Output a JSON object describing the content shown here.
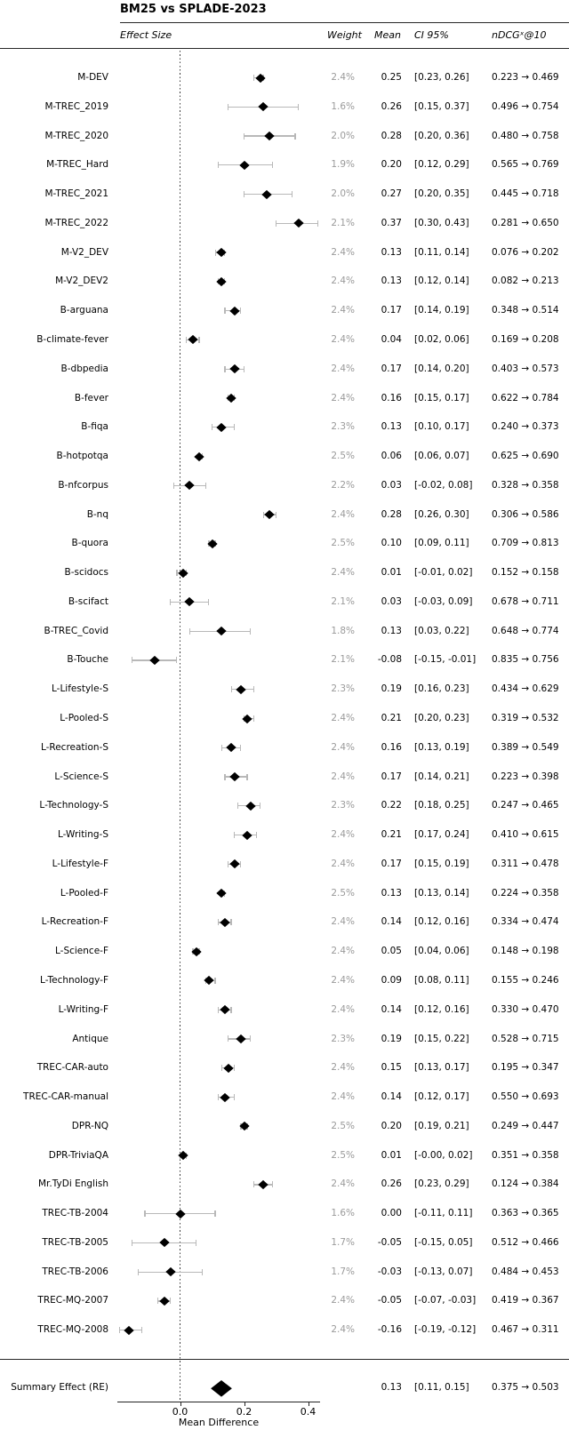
{
  "title": "BM25 vs SPLADE-2023",
  "header": {
    "effect_size": "Effect Size",
    "weight": "Weight",
    "mean": "Mean",
    "ci": "CI 95%",
    "ndcg": "nDCGˣ@10"
  },
  "axis": {
    "xlabel": "Mean Difference",
    "tick_labels": [
      "0.0",
      "0.2",
      "0.4"
    ]
  },
  "colors": {
    "text": "#000000",
    "weight_text": "#9a9a9a",
    "errorbar": "#b8b8b8",
    "diamond": "#000000",
    "rule": "#262626"
  },
  "chart_data": {
    "type": "forest",
    "title": "BM25 vs SPLADE-2023",
    "xlabel": "Mean Difference",
    "xlim": [
      -0.2,
      0.44
    ],
    "x_ticks": [
      0.0,
      0.2,
      0.4
    ],
    "zero_reference_line": 0.0,
    "grid": false,
    "rows": [
      {
        "label": "M-DEV",
        "weight": "2.4%",
        "mean": "0.25",
        "lo": 0.23,
        "hi": 0.26,
        "ci": "[0.23, 0.26]",
        "ndcg": "0.223 → 0.469"
      },
      {
        "label": "M-TREC_2019",
        "weight": "1.6%",
        "mean": "0.26",
        "lo": 0.15,
        "hi": 0.37,
        "ci": "[0.15, 0.37]",
        "ndcg": "0.496 → 0.754"
      },
      {
        "label": "M-TREC_2020",
        "weight": "2.0%",
        "mean": "0.28",
        "lo": 0.2,
        "hi": 0.36,
        "ci": "[0.20, 0.36]",
        "ndcg": "0.480 → 0.758"
      },
      {
        "label": "M-TREC_Hard",
        "weight": "1.9%",
        "mean": "0.20",
        "lo": 0.12,
        "hi": 0.29,
        "ci": "[0.12, 0.29]",
        "ndcg": "0.565 → 0.769"
      },
      {
        "label": "M-TREC_2021",
        "weight": "2.0%",
        "mean": "0.27",
        "lo": 0.2,
        "hi": 0.35,
        "ci": "[0.20, 0.35]",
        "ndcg": "0.445 → 0.718"
      },
      {
        "label": "M-TREC_2022",
        "weight": "2.1%",
        "mean": "0.37",
        "lo": 0.3,
        "hi": 0.43,
        "ci": "[0.30, 0.43]",
        "ndcg": "0.281 → 0.650"
      },
      {
        "label": "M-V2_DEV",
        "weight": "2.4%",
        "mean": "0.13",
        "lo": 0.11,
        "hi": 0.14,
        "ci": "[0.11, 0.14]",
        "ndcg": "0.076 → 0.202"
      },
      {
        "label": "M-V2_DEV2",
        "weight": "2.4%",
        "mean": "0.13",
        "lo": 0.12,
        "hi": 0.14,
        "ci": "[0.12, 0.14]",
        "ndcg": "0.082 → 0.213"
      },
      {
        "label": "B-arguana",
        "weight": "2.4%",
        "mean": "0.17",
        "lo": 0.14,
        "hi": 0.19,
        "ci": "[0.14, 0.19]",
        "ndcg": "0.348 → 0.514"
      },
      {
        "label": "B-climate-fever",
        "weight": "2.4%",
        "mean": "0.04",
        "lo": 0.02,
        "hi": 0.06,
        "ci": "[0.02, 0.06]",
        "ndcg": "0.169 → 0.208"
      },
      {
        "label": "B-dbpedia",
        "weight": "2.4%",
        "mean": "0.17",
        "lo": 0.14,
        "hi": 0.2,
        "ci": "[0.14, 0.20]",
        "ndcg": "0.403 → 0.573"
      },
      {
        "label": "B-fever",
        "weight": "2.4%",
        "mean": "0.16",
        "lo": 0.15,
        "hi": 0.17,
        "ci": "[0.15, 0.17]",
        "ndcg": "0.622 → 0.784"
      },
      {
        "label": "B-fiqa",
        "weight": "2.3%",
        "mean": "0.13",
        "lo": 0.1,
        "hi": 0.17,
        "ci": "[0.10, 0.17]",
        "ndcg": "0.240 → 0.373"
      },
      {
        "label": "B-hotpotqa",
        "weight": "2.5%",
        "mean": "0.06",
        "lo": 0.06,
        "hi": 0.07,
        "ci": "[0.06, 0.07]",
        "ndcg": "0.625 → 0.690"
      },
      {
        "label": "B-nfcorpus",
        "weight": "2.2%",
        "mean": "0.03",
        "lo": -0.02,
        "hi": 0.08,
        "ci": "[-0.02, 0.08]",
        "ndcg": "0.328 → 0.358"
      },
      {
        "label": "B-nq",
        "weight": "2.4%",
        "mean": "0.28",
        "lo": 0.26,
        "hi": 0.3,
        "ci": "[0.26, 0.30]",
        "ndcg": "0.306 → 0.586"
      },
      {
        "label": "B-quora",
        "weight": "2.5%",
        "mean": "0.10",
        "lo": 0.09,
        "hi": 0.11,
        "ci": "[0.09, 0.11]",
        "ndcg": "0.709 → 0.813"
      },
      {
        "label": "B-scidocs",
        "weight": "2.4%",
        "mean": "0.01",
        "lo": -0.01,
        "hi": 0.02,
        "ci": "[-0.01, 0.02]",
        "ndcg": "0.152 → 0.158"
      },
      {
        "label": "B-scifact",
        "weight": "2.1%",
        "mean": "0.03",
        "lo": -0.03,
        "hi": 0.09,
        "ci": "[-0.03, 0.09]",
        "ndcg": "0.678 → 0.711"
      },
      {
        "label": "B-TREC_Covid",
        "weight": "1.8%",
        "mean": "0.13",
        "lo": 0.03,
        "hi": 0.22,
        "ci": "[0.03, 0.22]",
        "ndcg": "0.648 → 0.774"
      },
      {
        "label": "B-Touche",
        "weight": "2.1%",
        "mean": "-0.08",
        "lo": -0.15,
        "hi": -0.01,
        "ci": "[-0.15, -0.01]",
        "ndcg": "0.835 → 0.756"
      },
      {
        "label": "L-Lifestyle-S",
        "weight": "2.3%",
        "mean": "0.19",
        "lo": 0.16,
        "hi": 0.23,
        "ci": "[0.16, 0.23]",
        "ndcg": "0.434 → 0.629"
      },
      {
        "label": "L-Pooled-S",
        "weight": "2.4%",
        "mean": "0.21",
        "lo": 0.2,
        "hi": 0.23,
        "ci": "[0.20, 0.23]",
        "ndcg": "0.319 → 0.532"
      },
      {
        "label": "L-Recreation-S",
        "weight": "2.4%",
        "mean": "0.16",
        "lo": 0.13,
        "hi": 0.19,
        "ci": "[0.13, 0.19]",
        "ndcg": "0.389 → 0.549"
      },
      {
        "label": "L-Science-S",
        "weight": "2.4%",
        "mean": "0.17",
        "lo": 0.14,
        "hi": 0.21,
        "ci": "[0.14, 0.21]",
        "ndcg": "0.223 → 0.398"
      },
      {
        "label": "L-Technology-S",
        "weight": "2.3%",
        "mean": "0.22",
        "lo": 0.18,
        "hi": 0.25,
        "ci": "[0.18, 0.25]",
        "ndcg": "0.247 → 0.465"
      },
      {
        "label": "L-Writing-S",
        "weight": "2.4%",
        "mean": "0.21",
        "lo": 0.17,
        "hi": 0.24,
        "ci": "[0.17, 0.24]",
        "ndcg": "0.410 → 0.615"
      },
      {
        "label": "L-Lifestyle-F",
        "weight": "2.4%",
        "mean": "0.17",
        "lo": 0.15,
        "hi": 0.19,
        "ci": "[0.15, 0.19]",
        "ndcg": "0.311 → 0.478"
      },
      {
        "label": "L-Pooled-F",
        "weight": "2.5%",
        "mean": "0.13",
        "lo": 0.13,
        "hi": 0.14,
        "ci": "[0.13, 0.14]",
        "ndcg": "0.224 → 0.358"
      },
      {
        "label": "L-Recreation-F",
        "weight": "2.4%",
        "mean": "0.14",
        "lo": 0.12,
        "hi": 0.16,
        "ci": "[0.12, 0.16]",
        "ndcg": "0.334 → 0.474"
      },
      {
        "label": "L-Science-F",
        "weight": "2.4%",
        "mean": "0.05",
        "lo": 0.04,
        "hi": 0.06,
        "ci": "[0.04, 0.06]",
        "ndcg": "0.148 → 0.198"
      },
      {
        "label": "L-Technology-F",
        "weight": "2.4%",
        "mean": "0.09",
        "lo": 0.08,
        "hi": 0.11,
        "ci": "[0.08, 0.11]",
        "ndcg": "0.155 → 0.246"
      },
      {
        "label": "L-Writing-F",
        "weight": "2.4%",
        "mean": "0.14",
        "lo": 0.12,
        "hi": 0.16,
        "ci": "[0.12, 0.16]",
        "ndcg": "0.330 → 0.470"
      },
      {
        "label": "Antique",
        "weight": "2.3%",
        "mean": "0.19",
        "lo": 0.15,
        "hi": 0.22,
        "ci": "[0.15, 0.22]",
        "ndcg": "0.528 → 0.715"
      },
      {
        "label": "TREC-CAR-auto",
        "weight": "2.4%",
        "mean": "0.15",
        "lo": 0.13,
        "hi": 0.17,
        "ci": "[0.13, 0.17]",
        "ndcg": "0.195 → 0.347"
      },
      {
        "label": "TREC-CAR-manual",
        "weight": "2.4%",
        "mean": "0.14",
        "lo": 0.12,
        "hi": 0.17,
        "ci": "[0.12, 0.17]",
        "ndcg": "0.550 → 0.693"
      },
      {
        "label": "DPR-NQ",
        "weight": "2.5%",
        "mean": "0.20",
        "lo": 0.19,
        "hi": 0.21,
        "ci": "[0.19, 0.21]",
        "ndcg": "0.249 → 0.447"
      },
      {
        "label": "DPR-TriviaQA",
        "weight": "2.5%",
        "mean": "0.01",
        "lo": 0.0,
        "hi": 0.02,
        "ci": "[-0.00, 0.02]",
        "ndcg": "0.351 → 0.358"
      },
      {
        "label": "Mr.TyDi English",
        "weight": "2.4%",
        "mean": "0.26",
        "lo": 0.23,
        "hi": 0.29,
        "ci": "[0.23, 0.29]",
        "ndcg": "0.124 → 0.384"
      },
      {
        "label": "TREC-TB-2004",
        "weight": "1.6%",
        "mean": "0.00",
        "lo": -0.11,
        "hi": 0.11,
        "ci": "[-0.11, 0.11]",
        "ndcg": "0.363 → 0.365"
      },
      {
        "label": "TREC-TB-2005",
        "weight": "1.7%",
        "mean": "-0.05",
        "lo": -0.15,
        "hi": 0.05,
        "ci": "[-0.15, 0.05]",
        "ndcg": "0.512 → 0.466"
      },
      {
        "label": "TREC-TB-2006",
        "weight": "1.7%",
        "mean": "-0.03",
        "lo": -0.13,
        "hi": 0.07,
        "ci": "[-0.13, 0.07]",
        "ndcg": "0.484 → 0.453"
      },
      {
        "label": "TREC-MQ-2007",
        "weight": "2.4%",
        "mean": "-0.05",
        "lo": -0.07,
        "hi": -0.03,
        "ci": "[-0.07, -0.03]",
        "ndcg": "0.419 → 0.367"
      },
      {
        "label": "TREC-MQ-2008",
        "weight": "2.4%",
        "mean": "-0.16",
        "lo": -0.19,
        "hi": -0.12,
        "ci": "[-0.19, -0.12]",
        "ndcg": "0.467 → 0.311"
      }
    ],
    "summary": {
      "label": "Summary Effect (RE)",
      "mean": "0.13",
      "lo": 0.11,
      "hi": 0.15,
      "ci": "[0.11, 0.15]",
      "ndcg": "0.375 → 0.503"
    }
  }
}
